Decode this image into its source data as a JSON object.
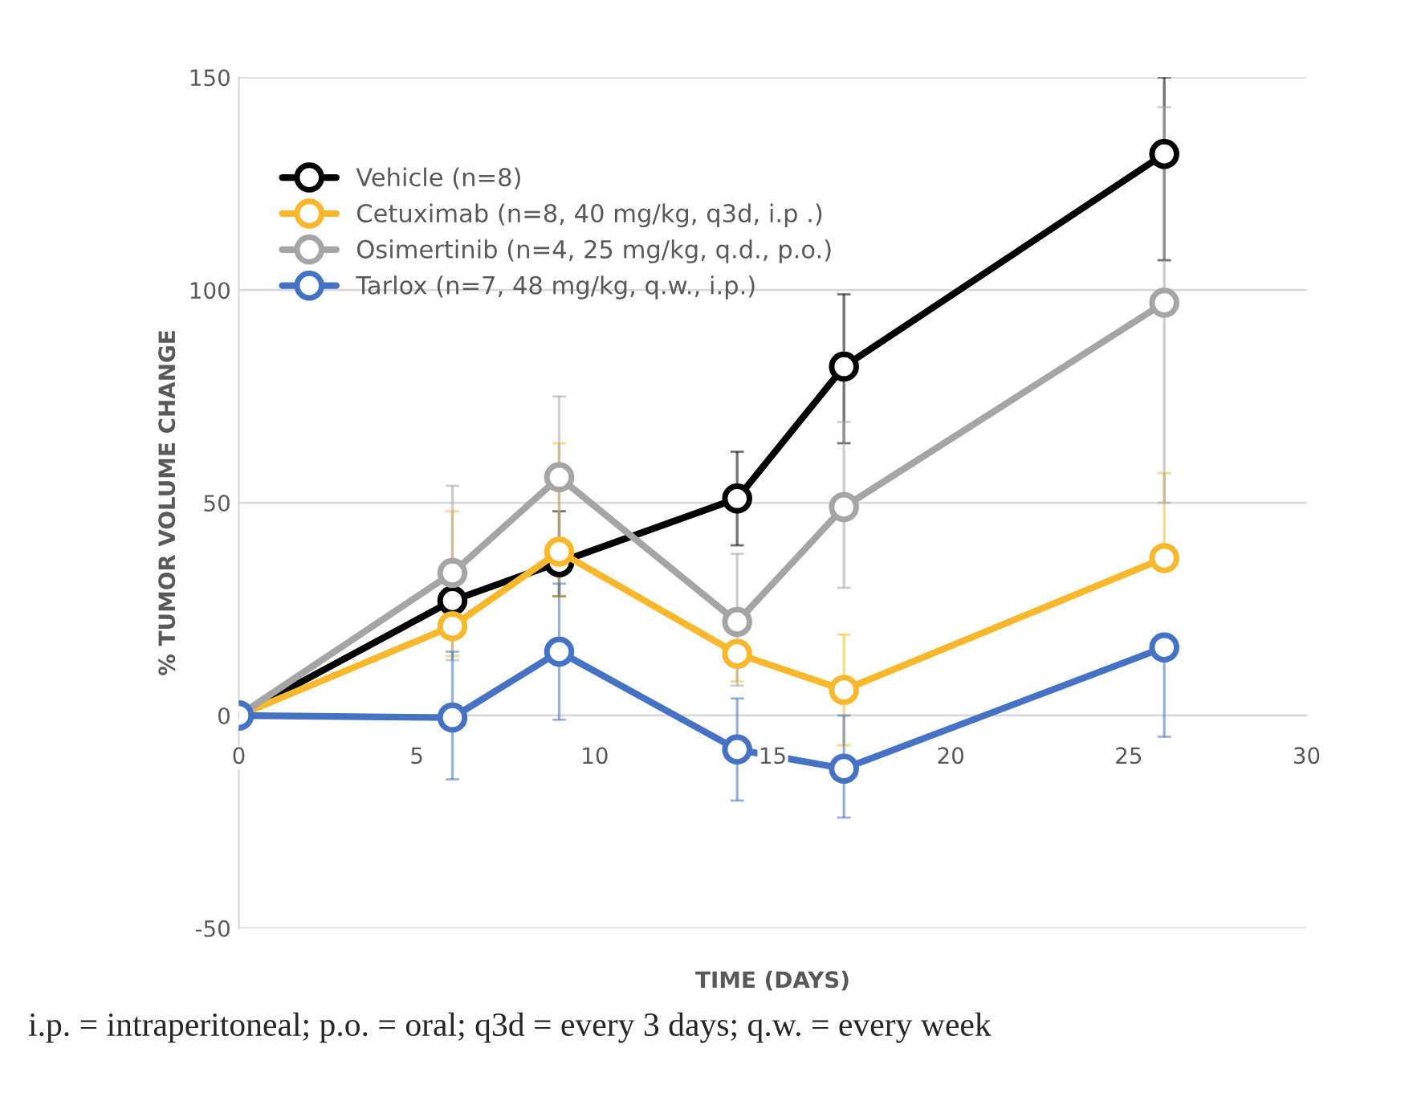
{
  "chart_data": {
    "type": "line",
    "xlabel": "TIME (DAYS)",
    "ylabel": "% TUMOR VOLUME CHANGE",
    "x": [
      0,
      6,
      9,
      14,
      17,
      26
    ],
    "series": [
      {
        "name": "Vehicle (n=8)",
        "color": "#000000",
        "values": [
          0,
          27,
          36,
          51,
          82,
          132
        ],
        "errors": [
          null,
          null,
          [
            28,
            48
          ],
          [
            40,
            62
          ],
          [
            64,
            99
          ],
          [
            107,
            150
          ]
        ]
      },
      {
        "name": "Cetuximab (n=8, 40 mg/kg, q3d, i.p .)",
        "color": "#f9b82b",
        "values": [
          0,
          21,
          38.5,
          14.5,
          6,
          37
        ],
        "errors": [
          null,
          [
            14,
            48
          ],
          [
            28,
            64
          ],
          [
            8,
            14.5
          ],
          [
            -7,
            19
          ],
          [
            37,
            57
          ]
        ]
      },
      {
        "name": "Osimertinib (n=4, 25 mg/kg, q.d., p.o.)",
        "color": "#a5a5a5",
        "values": [
          0,
          33.5,
          56,
          22,
          49,
          97
        ],
        "errors": [
          null,
          [
            13,
            54
          ],
          [
            37,
            75
          ],
          [
            7,
            38
          ],
          [
            30,
            69
          ],
          [
            50,
            143
          ]
        ]
      },
      {
        "name": "Tarlox (n=7, 48 mg/kg, q.w., i.p.)",
        "color": "#4472c4",
        "values": [
          0,
          -0.5,
          15,
          -8,
          -12.5,
          16
        ],
        "errors": [
          null,
          [
            -15,
            15
          ],
          [
            -1,
            31
          ],
          [
            -20,
            4
          ],
          [
            -24,
            0
          ],
          [
            -5,
            16
          ]
        ]
      }
    ],
    "xlim": [
      0,
      30
    ],
    "xticks": [
      0,
      5,
      10,
      15,
      20,
      25,
      30
    ],
    "ylim": [
      -50,
      150
    ],
    "yticks": [
      -50,
      0,
      50,
      100,
      150
    ],
    "grid": "y",
    "legend": "top left",
    "marker": "circle",
    "line_style": "solid",
    "annotations": [
      "i.p. = intraperitoneal; p.o. = oral; q3d = every 3 days; q.w. = every week"
    ]
  }
}
